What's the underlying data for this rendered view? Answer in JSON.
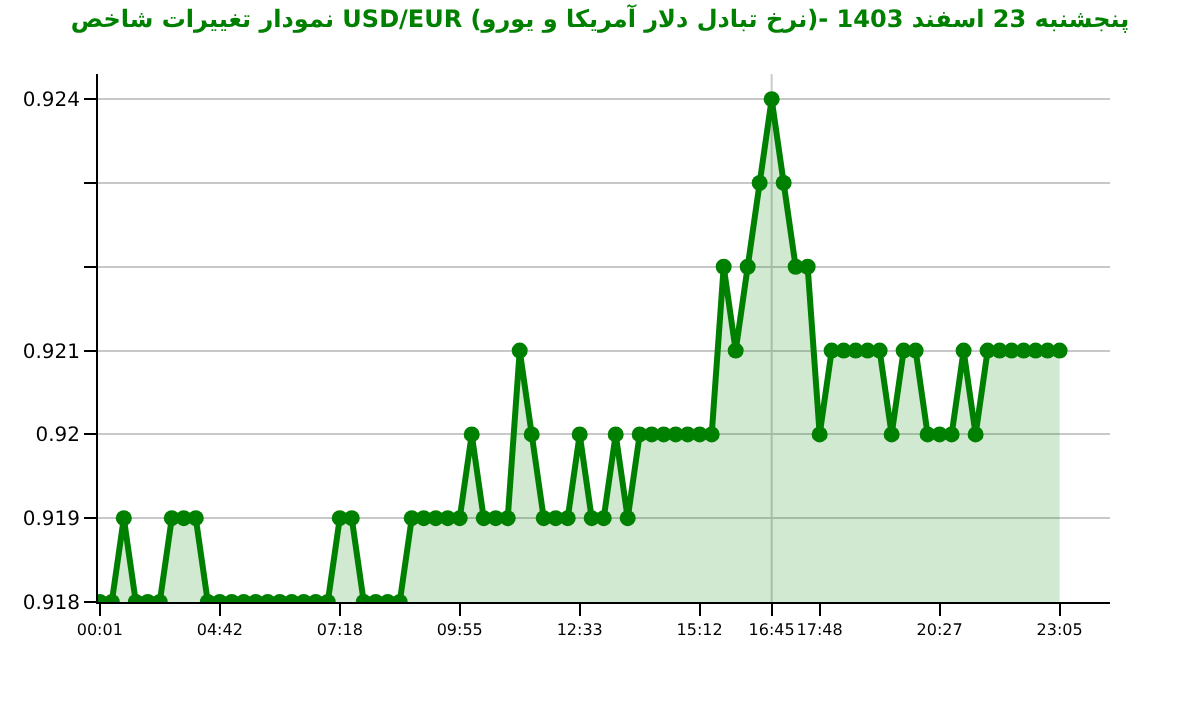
{
  "chart_data": {
    "type": "area",
    "title": "نمودار تغییرات شاخص USD/EUR (نرخ تبادل دلار آمریکا و یورو)- پنجشنبه 23 اسفند 1403",
    "categories": [
      "00:01",
      null,
      null,
      null,
      null,
      null,
      null,
      null,
      null,
      null,
      "04:42",
      null,
      null,
      null,
      null,
      null,
      null,
      null,
      null,
      null,
      "07:18",
      null,
      null,
      null,
      null,
      null,
      null,
      null,
      null,
      null,
      "09:55",
      null,
      null,
      null,
      null,
      null,
      null,
      null,
      null,
      null,
      "12:33",
      null,
      null,
      null,
      null,
      null,
      null,
      null,
      null,
      null,
      "15:12",
      null,
      null,
      null,
      null,
      null,
      "16:45",
      null,
      null,
      null,
      "17:48",
      null,
      null,
      null,
      null,
      null,
      null,
      null,
      null,
      null,
      "20:27",
      null,
      null,
      null,
      null,
      null,
      null,
      null,
      null,
      null,
      "23:05"
    ],
    "series": [
      {
        "color": "#008000",
        "values": [
          0.918,
          0.918,
          0.919,
          0.918,
          0.918,
          0.918,
          0.919,
          0.919,
          0.919,
          0.918,
          0.918,
          0.918,
          0.918,
          0.918,
          0.918,
          0.918,
          0.918,
          0.918,
          0.918,
          0.918,
          0.919,
          0.919,
          0.918,
          0.918,
          0.918,
          0.918,
          0.919,
          0.919,
          0.919,
          0.919,
          0.919,
          0.92,
          0.919,
          0.919,
          0.919,
          0.921,
          0.92,
          0.919,
          0.919,
          0.919,
          0.92,
          0.919,
          0.919,
          0.92,
          0.919,
          0.92,
          0.92,
          0.92,
          0.92,
          0.92,
          0.92,
          0.92,
          0.922,
          0.921,
          0.922,
          0.923,
          0.924,
          0.923,
          0.922,
          0.922,
          0.92,
          0.921,
          0.921,
          0.921,
          0.921,
          0.921,
          0.92,
          0.921,
          0.921,
          0.92,
          0.92,
          0.92,
          0.921,
          0.92,
          0.921,
          0.921,
          0.921,
          0.921,
          0.921,
          0.921,
          0.921
        ]
      }
    ],
    "ylim": [
      0.918,
      0.9243
    ],
    "yticks": [
      0.918,
      0.919,
      {
        "value": 0.92,
        "label": "0.92"
      },
      0.921,
      {
        "value": 0.922,
        "label": null
      },
      {
        "value": 0.923,
        "label": null
      },
      0.924
    ],
    "ref_lines": [
      {
        "axis": "x",
        "value": "16:45",
        "color": "#cccccc"
      }
    ],
    "grid": "y",
    "marker": "circle",
    "line_style": "solid"
  }
}
